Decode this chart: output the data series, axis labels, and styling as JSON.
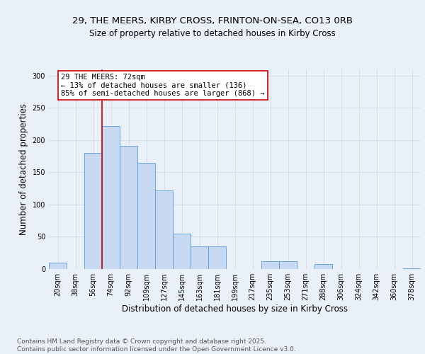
{
  "title1": "29, THE MEERS, KIRBY CROSS, FRINTON-ON-SEA, CO13 0RB",
  "title2": "Size of property relative to detached houses in Kirby Cross",
  "xlabel": "Distribution of detached houses by size in Kirby Cross",
  "ylabel": "Number of detached properties",
  "bin_labels": [
    "20sqm",
    "38sqm",
    "56sqm",
    "74sqm",
    "92sqm",
    "109sqm",
    "127sqm",
    "145sqm",
    "163sqm",
    "181sqm",
    "199sqm",
    "217sqm",
    "235sqm",
    "253sqm",
    "271sqm",
    "288sqm",
    "306sqm",
    "324sqm",
    "342sqm",
    "360sqm",
    "378sqm"
  ],
  "bar_values": [
    10,
    0,
    180,
    222,
    191,
    165,
    122,
    55,
    35,
    35,
    0,
    0,
    12,
    12,
    0,
    8,
    0,
    0,
    0,
    0,
    1
  ],
  "bar_color": "#c6d9f0",
  "bar_edge_color": "#5b9bd5",
  "vline_pos": 2.5,
  "vline_color": "#cc0000",
  "annotation_text": "29 THE MEERS: 72sqm\n← 13% of detached houses are smaller (136)\n85% of semi-detached houses are larger (868) →",
  "annotation_box_color": "#ffffff",
  "annotation_box_edge": "#cc0000",
  "ylim": [
    0,
    310
  ],
  "yticks": [
    0,
    50,
    100,
    150,
    200,
    250,
    300
  ],
  "grid_color": "#d0d8e8",
  "background_color": "#eaf0f8",
  "footnote": "Contains HM Land Registry data © Crown copyright and database right 2025.\nContains public sector information licensed under the Open Government Licence v3.0.",
  "title_fontsize": 9.5,
  "subtitle_fontsize": 8.5,
  "axis_label_fontsize": 8.5,
  "tick_fontsize": 7,
  "footnote_fontsize": 6.5
}
